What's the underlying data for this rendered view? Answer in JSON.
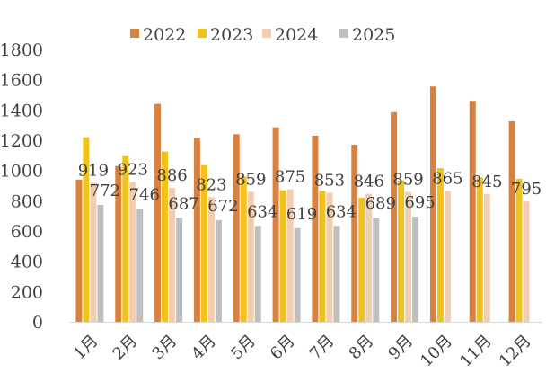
{
  "chart_data": {
    "type": "bar",
    "categories": [
      "1月",
      "2月",
      "3月",
      "4月",
      "5月",
      "6月",
      "7月",
      "8月",
      "9月",
      "10月",
      "11月",
      "12月"
    ],
    "series": [
      {
        "name": "2022",
        "color": "#D9823F",
        "values": [
          940,
          1030,
          1440,
          1215,
          1240,
          1285,
          1230,
          1170,
          1385,
          1555,
          1460,
          1325
        ]
      },
      {
        "name": "2023",
        "color": "#F2C21C",
        "values": [
          1220,
          1100,
          1125,
          1035,
          960,
          870,
          865,
          820,
          935,
          1015,
          955,
          945
        ]
      },
      {
        "name": "2024",
        "color": "#F3CDB1",
        "values": [
          919,
          923,
          886,
          823,
          859,
          875,
          853,
          846,
          859,
          865,
          845,
          795
        ]
      },
      {
        "name": "2025",
        "color": "#BFBFBF",
        "values": [
          772,
          746,
          687,
          672,
          634,
          619,
          634,
          689,
          695,
          null,
          null,
          null
        ]
      }
    ],
    "data_labels": [
      {
        "month": 1,
        "series": "2024",
        "text": "919"
      },
      {
        "month": 2,
        "series": "2024",
        "text": "923"
      },
      {
        "month": 3,
        "series": "2024",
        "text": "886"
      },
      {
        "month": 4,
        "series": "2024",
        "text": "823"
      },
      {
        "month": 5,
        "series": "2024",
        "text": "859"
      },
      {
        "month": 6,
        "series": "2024",
        "text": "875"
      },
      {
        "month": 7,
        "series": "2024",
        "text": "853"
      },
      {
        "month": 8,
        "series": "2024",
        "text": "846"
      },
      {
        "month": 9,
        "series": "2024",
        "text": "859"
      },
      {
        "month": 10,
        "series": "2024",
        "text": "865"
      },
      {
        "month": 11,
        "series": "2024",
        "text": "845"
      },
      {
        "month": 12,
        "series": "2024",
        "text": "795"
      },
      {
        "month": 1,
        "series": "2025",
        "text": "772"
      },
      {
        "month": 2,
        "series": "2025",
        "text": "746"
      },
      {
        "month": 3,
        "series": "2025",
        "text": "687"
      },
      {
        "month": 4,
        "series": "2025",
        "text": "672"
      },
      {
        "month": 5,
        "series": "2025",
        "text": "634"
      },
      {
        "month": 6,
        "series": "2025",
        "text": "619"
      },
      {
        "month": 7,
        "series": "2025",
        "text": "634"
      },
      {
        "month": 8,
        "series": "2025",
        "text": "689"
      },
      {
        "month": 9,
        "series": "2025",
        "text": "695"
      }
    ],
    "yticks": [
      "0",
      "200",
      "400",
      "600",
      "800",
      "1000",
      "1200",
      "1400",
      "1600",
      "1800"
    ],
    "ylim": [
      0,
      1800
    ],
    "grid": false,
    "legend_position": "top"
  }
}
